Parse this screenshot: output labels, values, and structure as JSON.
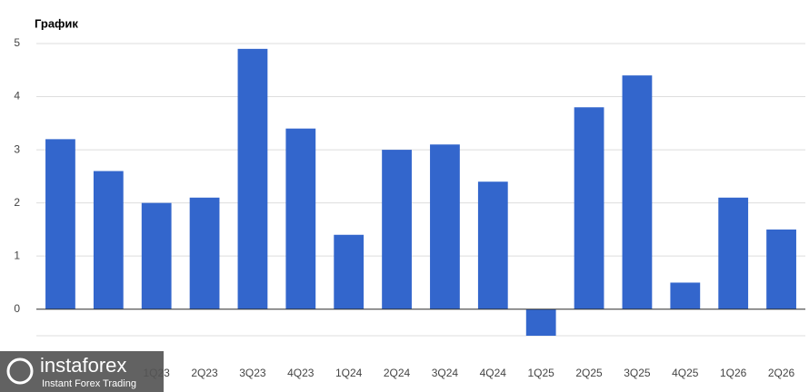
{
  "chart_data": {
    "type": "bar",
    "title": "График",
    "categories": [
      null,
      null,
      "1Q23",
      "2Q23",
      "3Q23",
      "4Q23",
      "1Q24",
      "2Q24",
      "3Q24",
      "4Q24",
      "1Q25",
      "2Q25",
      "3Q25",
      "4Q25",
      "1Q26",
      "2Q26"
    ],
    "values": [
      3.2,
      2.6,
      2.0,
      2.1,
      4.9,
      3.4,
      1.4,
      3.0,
      3.1,
      2.4,
      -0.5,
      3.8,
      4.4,
      0.5,
      2.1,
      1.5
    ],
    "color": "#3366cc",
    "ylim": [
      -0.5,
      5
    ],
    "yticks": [
      0,
      1,
      2,
      3,
      4,
      5
    ],
    "grid": true
  },
  "watermark": {
    "name": "instaforex",
    "tagline": "Instant Forex Trading"
  }
}
